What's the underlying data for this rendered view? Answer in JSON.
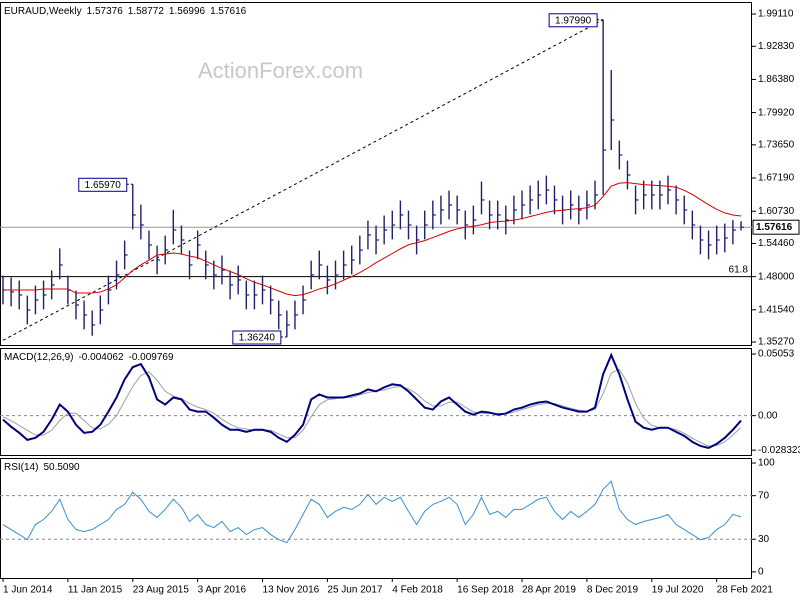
{
  "chart_data": [
    {
      "type": "ohlc",
      "title": "EURAUD,Weekly",
      "last_open": 1.57376,
      "watermark": "ActionForex.com",
      "color": "#1f1f6e",
      "high": [
        1.482,
        1.4782,
        1.4723,
        1.4431,
        1.4626,
        1.4723,
        1.4918,
        1.535,
        1.482,
        1.4528,
        1.4334,
        1.4139,
        1.4431,
        1.482,
        1.5112,
        1.5501,
        1.6597,
        1.62,
        1.5696,
        1.5404,
        1.5598,
        1.61,
        1.5793,
        1.5307,
        1.5696,
        1.5307,
        1.5112,
        1.5209,
        1.4918,
        1.5015,
        1.4723,
        1.4723,
        1.482,
        1.4626,
        1.4334,
        1.4139,
        1.4334,
        1.4626,
        1.5112,
        1.5307,
        1.5015,
        1.5112,
        1.5307,
        1.5404,
        1.5598,
        1.5891,
        1.5793,
        1.5988,
        1.6085,
        1.628,
        1.6085,
        1.5793,
        1.6085,
        1.628,
        1.6377,
        1.6474,
        1.6377,
        1.6085,
        1.6182,
        1.665,
        1.628,
        1.628,
        1.6182,
        1.6377,
        1.6474,
        1.6572,
        1.6669,
        1.6766,
        1.6572,
        1.6377,
        1.6474,
        1.6377,
        1.6474,
        1.6669,
        1.9799,
        1.8821,
        1.7447,
        1.7058,
        1.6572,
        1.6669,
        1.6669,
        1.6669,
        1.6766,
        1.6572,
        1.6377,
        1.6085,
        1.5793,
        1.5696,
        1.5793,
        1.5832,
        1.59,
        1.58772
      ],
      "low": [
        1.426,
        1.4222,
        1.4163,
        1.3871,
        1.4066,
        1.4163,
        1.4358,
        1.4747,
        1.426,
        1.3968,
        1.3774,
        1.365,
        1.3871,
        1.426,
        1.4552,
        1.4941,
        1.572,
        1.5525,
        1.5136,
        1.4844,
        1.5038,
        1.5428,
        1.5233,
        1.4747,
        1.5136,
        1.4747,
        1.4552,
        1.4649,
        1.4358,
        1.4455,
        1.4163,
        1.4163,
        1.426,
        1.4066,
        1.3774,
        1.3624,
        1.3774,
        1.4066,
        1.4552,
        1.4747,
        1.4455,
        1.4552,
        1.4747,
        1.4844,
        1.5038,
        1.5331,
        1.5233,
        1.5428,
        1.5525,
        1.572,
        1.5525,
        1.5233,
        1.5525,
        1.572,
        1.5817,
        1.5914,
        1.5817,
        1.5525,
        1.5622,
        1.6012,
        1.572,
        1.572,
        1.5622,
        1.5817,
        1.5914,
        1.6012,
        1.6109,
        1.6206,
        1.6012,
        1.5817,
        1.5914,
        1.5817,
        1.5914,
        1.6109,
        1.6389,
        1.7264,
        1.6887,
        1.6498,
        1.6012,
        1.6109,
        1.6109,
        1.6109,
        1.6206,
        1.6012,
        1.5817,
        1.5525,
        1.5233,
        1.5136,
        1.5233,
        1.5272,
        1.5428,
        1.56996
      ],
      "close": [
        1.454,
        1.4502,
        1.4443,
        1.4151,
        1.4346,
        1.4443,
        1.4638,
        1.5027,
        1.454,
        1.4248,
        1.4054,
        1.3859,
        1.4151,
        1.454,
        1.4832,
        1.5221,
        1.6,
        1.5805,
        1.5416,
        1.5124,
        1.5318,
        1.5708,
        1.5513,
        1.5027,
        1.5416,
        1.5027,
        1.4832,
        1.4929,
        1.4638,
        1.4735,
        1.4443,
        1.4443,
        1.454,
        1.4346,
        1.4054,
        1.3859,
        1.4054,
        1.4346,
        1.4832,
        1.5027,
        1.4735,
        1.4832,
        1.5027,
        1.5124,
        1.5318,
        1.5611,
        1.5513,
        1.5708,
        1.5805,
        1.6,
        1.5805,
        1.5513,
        1.5805,
        1.6,
        1.6097,
        1.6194,
        1.6097,
        1.5805,
        1.5902,
        1.6292,
        1.6,
        1.6,
        1.5902,
        1.6097,
        1.6194,
        1.6292,
        1.6389,
        1.6486,
        1.6292,
        1.6097,
        1.6194,
        1.6097,
        1.6194,
        1.6389,
        1.7264,
        1.7848,
        1.7167,
        1.6778,
        1.6292,
        1.6389,
        1.6389,
        1.6389,
        1.6486,
        1.6292,
        1.6097,
        1.5805,
        1.5513,
        1.5416,
        1.5513,
        1.5552,
        1.5708,
        1.57616
      ],
      "ma": {
        "color": "#d40000",
        "values": [
          1.454,
          1.454,
          1.454,
          1.454,
          1.454,
          1.456,
          1.456,
          1.456,
          1.456,
          1.448,
          1.448,
          1.448,
          1.45,
          1.456,
          1.464,
          1.478,
          1.492,
          1.503,
          1.512,
          1.522,
          1.524,
          1.526,
          1.524,
          1.52,
          1.517,
          1.51,
          1.503,
          1.496,
          1.49,
          1.484,
          1.476,
          1.469,
          1.464,
          1.458,
          1.452,
          1.446,
          1.443,
          1.445,
          1.45,
          1.456,
          1.46,
          1.466,
          1.473,
          1.48,
          1.488,
          1.497,
          1.507,
          1.516,
          1.525,
          1.534,
          1.542,
          1.546,
          1.55,
          1.556,
          1.562,
          1.568,
          1.573,
          1.576,
          1.578,
          1.581,
          1.585,
          1.587,
          1.588,
          1.59,
          1.593,
          1.597,
          1.601,
          1.605,
          1.608,
          1.609,
          1.611,
          1.612,
          1.614,
          1.619,
          1.636,
          1.656,
          1.662,
          1.663,
          1.661,
          1.659,
          1.658,
          1.657,
          1.656,
          1.654,
          1.648,
          1.64,
          1.63,
          1.62,
          1.611,
          1.604,
          1.6,
          1.598
        ]
      },
      "trendline": [
        1.356,
        1.9799
      ],
      "level": {
        "value": 1.48,
        "label": "61.8"
      },
      "annotations": [
        {
          "value": 1.9799,
          "label": "1.97990"
        },
        {
          "value": 1.6597,
          "label": "1.65970"
        },
        {
          "value": 1.3624,
          "label": "1.36240"
        }
      ],
      "ylim": [
        1.3469,
        2.0145
      ],
      "yticks": [
        {
          "value": 1.9911,
          "label": "1.99110"
        },
        {
          "value": 1.9283,
          "label": "1.92830"
        },
        {
          "value": 1.8638,
          "label": "1.86380"
        },
        {
          "value": 1.7992,
          "label": "1.79920"
        },
        {
          "value": 1.7365,
          "label": "1.73650"
        },
        {
          "value": 1.6719,
          "label": "1.67190"
        },
        {
          "value": 1.6073,
          "label": "1.60730"
        },
        {
          "value": 1.5446,
          "label": "1.54460"
        },
        {
          "value": 1.48,
          "label": "1.48000"
        },
        {
          "value": 1.4154,
          "label": "1.41540"
        },
        {
          "value": 1.3527,
          "label": "1.35270"
        }
      ],
      "grid": false
    },
    {
      "type": "macd",
      "title": "MACD(12,26,9)",
      "series": [
        {
          "color": "#00007f",
          "values": [
            -0.0033,
            -0.0091,
            -0.0141,
            -0.0199,
            -0.0182,
            -0.0133,
            -0.0033,
            0.0091,
            0.0033,
            -0.0075,
            -0.0141,
            -0.0133,
            -0.0075,
            0.0033,
            0.0149,
            0.0298,
            0.0398,
            0.0423,
            0.0315,
            0.0133,
            0.0091,
            0.0149,
            0.0133,
            0.005,
            0.0033,
            0.0033,
            -0.0017,
            -0.0075,
            -0.0116,
            -0.0116,
            -0.0133,
            -0.0116,
            -0.0116,
            -0.0133,
            -0.0182,
            -0.0215,
            -0.0157,
            -0.0075,
            0.0133,
            0.0174,
            0.0149,
            0.0149,
            0.0149,
            0.0166,
            0.0182,
            0.0215,
            0.0199,
            0.0232,
            0.0257,
            0.0249,
            0.0199,
            0.0133,
            0.0066,
            0.005,
            0.0116,
            0.0149,
            0.0091,
            0.0033,
            0.0008,
            0.0033,
            0.0025,
            0.0008,
            0.0017,
            0.005,
            0.0066,
            0.0091,
            0.0108,
            0.0116,
            0.0091,
            0.0066,
            0.005,
            0.0033,
            0.0033,
            0.0066,
            0.034,
            0.0497,
            0.034,
            0.0133,
            -0.005,
            -0.0099,
            -0.0116,
            -0.0099,
            -0.0099,
            -0.0133,
            -0.0166,
            -0.0215,
            -0.0249,
            -0.0265,
            -0.0232,
            -0.0182,
            -0.0116,
            -0.004062
          ]
        },
        {
          "color": "#a0a0a0",
          "values": [
            -0.001,
            -0.004,
            -0.008,
            -0.012,
            -0.016,
            -0.016,
            -0.012,
            -0.004,
            0.002,
            0.002,
            -0.004,
            -0.01,
            -0.011,
            -0.007,
            0.0,
            0.012,
            0.024,
            0.033,
            0.036,
            0.029,
            0.02,
            0.016,
            0.014,
            0.01,
            0.007,
            0.005,
            0.002,
            -0.003,
            -0.007,
            -0.01,
            -0.011,
            -0.012,
            -0.012,
            -0.012,
            -0.015,
            -0.018,
            -0.018,
            -0.012,
            -0.001,
            0.009,
            0.013,
            0.014,
            0.015,
            0.015,
            0.017,
            0.019,
            0.02,
            0.021,
            0.023,
            0.024,
            0.022,
            0.018,
            0.012,
            0.008,
            0.008,
            0.011,
            0.011,
            0.007,
            0.003,
            0.002,
            0.002,
            0.002,
            0.0015,
            0.003,
            0.005,
            0.007,
            0.009,
            0.01,
            0.01,
            0.008,
            0.006,
            0.0045,
            0.0035,
            0.005,
            0.018,
            0.035,
            0.038,
            0.027,
            0.01,
            -0.002,
            -0.008,
            -0.01,
            -0.01,
            -0.0115,
            -0.0145,
            -0.0185,
            -0.022,
            -0.025,
            -0.0245,
            -0.0215,
            -0.016,
            -0.009769
          ]
        }
      ],
      "ylim": [
        -0.0323,
        0.0555
      ],
      "yticks": [
        0.05053,
        {
          "value": 0,
          "label": "0.00"
        },
        -0.028323
      ],
      "grid": true
    },
    {
      "type": "line",
      "title": "RSI(14)",
      "series": [
        {
          "color": "#3d8fd1",
          "last_label": "50.5090",
          "values": [
            43.5,
            38.9,
            34.3,
            29.6,
            43.5,
            48.1,
            55.6,
            66.7,
            48.1,
            38.9,
            37.0,
            38.9,
            43.5,
            48.1,
            57.4,
            62.0,
            73.1,
            66.7,
            55.6,
            50.0,
            57.4,
            66.7,
            59.3,
            46.3,
            52.8,
            43.5,
            40.7,
            46.3,
            37.0,
            40.7,
            34.3,
            38.9,
            40.7,
            34.3,
            29.6,
            26.9,
            38.9,
            52.8,
            66.7,
            62.0,
            50.0,
            55.6,
            59.3,
            57.4,
            62.0,
            71.3,
            62.0,
            68.5,
            64.8,
            68.5,
            55.6,
            43.5,
            55.6,
            62.0,
            64.8,
            68.5,
            62.0,
            43.5,
            52.8,
            68.5,
            52.8,
            55.6,
            50.0,
            57.4,
            57.4,
            62.0,
            66.7,
            68.5,
            55.6,
            48.1,
            55.6,
            50.0,
            55.6,
            62.0,
            75.9,
            83.3,
            57.4,
            48.1,
            43.5,
            46.3,
            48.1,
            50.0,
            52.8,
            43.5,
            38.9,
            34.3,
            29.6,
            31.5,
            38.9,
            43.5,
            52.8,
            50.509
          ]
        }
      ],
      "categories": [
        "1 Jun 2014",
        null,
        null,
        null,
        null,
        null,
        null,
        null,
        "11 Jan 2015",
        null,
        null,
        null,
        null,
        null,
        null,
        null,
        "23 Aug 2015",
        null,
        null,
        null,
        null,
        null,
        null,
        null,
        "3 Apr 2016",
        null,
        null,
        null,
        null,
        null,
        null,
        null,
        "13 Nov 2016",
        null,
        null,
        null,
        null,
        null,
        null,
        null,
        "25 Jun 2017",
        null,
        null,
        null,
        null,
        null,
        null,
        null,
        "4 Feb 2018",
        null,
        null,
        null,
        null,
        null,
        null,
        null,
        "16 Sep 2018",
        null,
        null,
        null,
        null,
        null,
        null,
        null,
        "28 Apr 2019",
        null,
        null,
        null,
        null,
        null,
        null,
        null,
        "8 Dec 2019",
        null,
        null,
        null,
        null,
        null,
        null,
        null,
        "19 Jul 2020",
        null,
        null,
        null,
        null,
        null,
        null,
        null,
        "28 Feb 2021",
        null,
        null,
        null
      ],
      "ylim": [
        -5.6,
        104.6
      ],
      "yticks": [
        100,
        70,
        30,
        0
      ],
      "grid": true
    }
  ]
}
